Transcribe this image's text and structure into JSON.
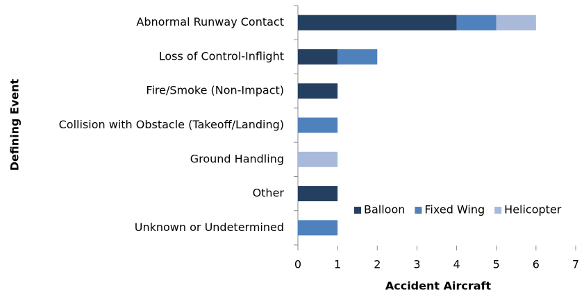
{
  "chart_data": {
    "type": "bar",
    "orientation": "horizontal",
    "stacked": true,
    "xlabel": "Accident Aircraft",
    "ylabel": "Defining Event",
    "categories": [
      "Abnormal Runway Contact",
      "Loss of Control-Inflight",
      "Fire/Smoke (Non-Impact)",
      "Collision with Obstacle (Takeoff/Landing)",
      "Ground Handling",
      "Other",
      "Unknown or Undetermined"
    ],
    "series": [
      {
        "name": "Balloon",
        "color": "#243f60",
        "values": [
          4,
          1,
          1,
          0,
          0,
          1,
          0
        ]
      },
      {
        "name": "Fixed Wing",
        "color": "#4f81bd",
        "values": [
          1,
          1,
          0,
          1,
          0,
          0,
          1
        ]
      },
      {
        "name": "Helicopter",
        "color": "#a9b9d9",
        "values": [
          1,
          0,
          0,
          0,
          1,
          0,
          0
        ]
      }
    ],
    "xlim": [
      0,
      7
    ],
    "xticks": [
      0,
      1,
      2,
      3,
      4,
      5,
      6,
      7
    ],
    "grid": false,
    "legend": "lower right"
  }
}
